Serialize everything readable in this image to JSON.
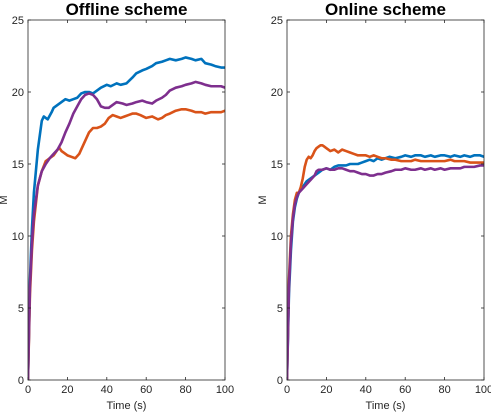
{
  "chart_data": [
    {
      "type": "line",
      "title": "Offline scheme",
      "xlabel": "Time (s)",
      "ylabel": "M",
      "xlim": [
        0,
        100
      ],
      "ylim": [
        0,
        25
      ],
      "xticks": [
        0,
        20,
        40,
        60,
        80,
        100
      ],
      "yticks": [
        0,
        5,
        10,
        15,
        20,
        25
      ],
      "grid": false,
      "series": [
        {
          "color": "#0072BD",
          "x": [
            0,
            1,
            2,
            3,
            5,
            7,
            8,
            9,
            10,
            12,
            13,
            15,
            17,
            19,
            21,
            23,
            25,
            27,
            29,
            31,
            33,
            35,
            37,
            40,
            42,
            45,
            47,
            50,
            53,
            55,
            58,
            60,
            63,
            65,
            68,
            70,
            72,
            75,
            78,
            80,
            83,
            85,
            88,
            90,
            93,
            95,
            98,
            100
          ],
          "y": [
            0,
            7,
            10.5,
            13,
            16,
            18,
            18.3,
            18.2,
            18.1,
            18.6,
            18.9,
            19.1,
            19.3,
            19.5,
            19.4,
            19.5,
            19.6,
            19.9,
            20.0,
            20.0,
            19.9,
            20.1,
            20.3,
            20.5,
            20.4,
            20.6,
            20.5,
            20.6,
            21.0,
            21.3,
            21.5,
            21.6,
            21.8,
            22.0,
            22.1,
            22.2,
            22.3,
            22.2,
            22.3,
            22.4,
            22.3,
            22.2,
            22.3,
            22.0,
            21.9,
            21.8,
            21.7,
            21.7
          ]
        },
        {
          "color": "#D95319",
          "x": [
            0,
            1,
            2,
            3,
            5,
            7,
            9,
            11,
            13,
            15,
            16,
            17,
            18,
            20,
            22,
            24,
            26,
            27,
            29,
            31,
            33,
            35,
            37,
            39,
            41,
            43,
            45,
            47,
            49,
            51,
            53,
            55,
            57,
            60,
            63,
            66,
            68,
            70,
            72,
            75,
            78,
            80,
            83,
            85,
            88,
            90,
            93,
            95,
            98,
            100
          ],
          "y": [
            0,
            6,
            9,
            11,
            13.5,
            14.5,
            15.2,
            15.4,
            15.6,
            16.0,
            16.1,
            15.9,
            15.8,
            15.6,
            15.5,
            15.4,
            15.7,
            16.0,
            16.6,
            17.2,
            17.5,
            17.5,
            17.6,
            17.8,
            18.2,
            18.4,
            18.3,
            18.2,
            18.3,
            18.4,
            18.5,
            18.5,
            18.4,
            18.2,
            18.3,
            18.1,
            18.2,
            18.4,
            18.5,
            18.7,
            18.8,
            18.8,
            18.7,
            18.6,
            18.6,
            18.5,
            18.6,
            18.6,
            18.6,
            18.7
          ]
        },
        {
          "color": "#7E2F8E",
          "x": [
            0,
            1,
            2,
            3,
            5,
            7,
            9,
            11,
            13,
            15,
            17,
            19,
            21,
            23,
            25,
            27,
            29,
            31,
            33,
            35,
            37,
            39,
            41,
            43,
            45,
            48,
            50,
            53,
            55,
            58,
            60,
            63,
            65,
            68,
            70,
            72,
            75,
            78,
            80,
            83,
            85,
            88,
            90,
            93,
            95,
            98,
            100
          ],
          "y": [
            0,
            6.5,
            9.5,
            11.5,
            13.5,
            14.5,
            15.0,
            15.4,
            15.7,
            16.0,
            16.5,
            17.2,
            17.8,
            18.5,
            19.0,
            19.5,
            19.8,
            19.9,
            19.8,
            19.5,
            19.0,
            18.9,
            18.9,
            19.1,
            19.3,
            19.2,
            19.1,
            19.2,
            19.3,
            19.4,
            19.3,
            19.2,
            19.4,
            19.6,
            19.8,
            20.1,
            20.3,
            20.4,
            20.5,
            20.6,
            20.7,
            20.6,
            20.5,
            20.4,
            20.4,
            20.4,
            20.3
          ]
        }
      ]
    },
    {
      "type": "line",
      "title": "Online scheme",
      "xlabel": "Time (s)",
      "ylabel": "M",
      "xlim": [
        0,
        100
      ],
      "ylim": [
        0,
        25
      ],
      "xticks": [
        0,
        20,
        40,
        60,
        80,
        100
      ],
      "yticks": [
        0,
        5,
        10,
        15,
        20,
        25
      ],
      "grid": false,
      "series": [
        {
          "color": "#0072BD",
          "x": [
            0,
            1,
            2,
            3,
            4,
            5,
            6,
            8,
            10,
            12,
            14,
            16,
            18,
            20,
            22,
            24,
            26,
            28,
            30,
            32,
            34,
            36,
            38,
            40,
            42,
            44,
            46,
            48,
            50,
            52,
            55,
            58,
            60,
            63,
            65,
            68,
            70,
            73,
            75,
            78,
            80,
            83,
            85,
            88,
            90,
            93,
            95,
            98,
            100
          ],
          "y": [
            0,
            6,
            9,
            11,
            12,
            12.6,
            13.0,
            13.4,
            13.8,
            14.0,
            14.2,
            14.4,
            14.6,
            14.7,
            14.6,
            14.8,
            14.9,
            14.9,
            14.9,
            15.0,
            15.0,
            15.0,
            15.1,
            15.2,
            15.3,
            15.2,
            15.4,
            15.3,
            15.4,
            15.5,
            15.4,
            15.5,
            15.6,
            15.5,
            15.6,
            15.6,
            15.5,
            15.6,
            15.5,
            15.6,
            15.6,
            15.5,
            15.6,
            15.5,
            15.6,
            15.5,
            15.6,
            15.6,
            15.5
          ]
        },
        {
          "color": "#D95319",
          "x": [
            0,
            1,
            2,
            3,
            4,
            5,
            6,
            7,
            8,
            9,
            10,
            11,
            12,
            13,
            14,
            15,
            16,
            17,
            18,
            19,
            20,
            22,
            24,
            26,
            28,
            30,
            32,
            34,
            36,
            38,
            40,
            42,
            44,
            46,
            48,
            50,
            53,
            55,
            58,
            60,
            63,
            65,
            68,
            70,
            73,
            75,
            78,
            80,
            83,
            85,
            88,
            90,
            93,
            95,
            98,
            100
          ],
          "y": [
            0,
            7,
            10,
            11.5,
            12.5,
            13.0,
            13.0,
            13.4,
            14.0,
            14.8,
            15.3,
            15.5,
            15.4,
            15.6,
            15.9,
            16.1,
            16.2,
            16.3,
            16.3,
            16.2,
            16.1,
            15.9,
            16.0,
            15.8,
            16.0,
            15.9,
            15.8,
            15.7,
            15.6,
            15.6,
            15.6,
            15.5,
            15.6,
            15.5,
            15.4,
            15.4,
            15.3,
            15.3,
            15.2,
            15.2,
            15.2,
            15.3,
            15.2,
            15.2,
            15.2,
            15.2,
            15.2,
            15.2,
            15.3,
            15.2,
            15.2,
            15.2,
            15.1,
            15.1,
            15.1,
            15.1
          ]
        },
        {
          "color": "#7E2F8E",
          "x": [
            0,
            1,
            2,
            3,
            4,
            5,
            6,
            8,
            10,
            12,
            14,
            15,
            16,
            18,
            20,
            22,
            24,
            26,
            28,
            30,
            32,
            34,
            36,
            38,
            40,
            42,
            44,
            46,
            48,
            50,
            53,
            55,
            58,
            60,
            63,
            65,
            68,
            70,
            73,
            75,
            78,
            80,
            83,
            85,
            88,
            90,
            93,
            95,
            98,
            100
          ],
          "y": [
            0,
            6.5,
            9.5,
            11.2,
            12.2,
            12.7,
            13.0,
            13.3,
            13.6,
            13.9,
            14.2,
            14.5,
            14.6,
            14.6,
            14.7,
            14.6,
            14.6,
            14.7,
            14.7,
            14.6,
            14.5,
            14.5,
            14.4,
            14.3,
            14.3,
            14.2,
            14.2,
            14.3,
            14.3,
            14.4,
            14.5,
            14.6,
            14.6,
            14.7,
            14.6,
            14.6,
            14.7,
            14.6,
            14.7,
            14.6,
            14.7,
            14.6,
            14.7,
            14.7,
            14.7,
            14.8,
            14.8,
            14.8,
            14.9,
            14.9
          ]
        }
      ]
    }
  ]
}
